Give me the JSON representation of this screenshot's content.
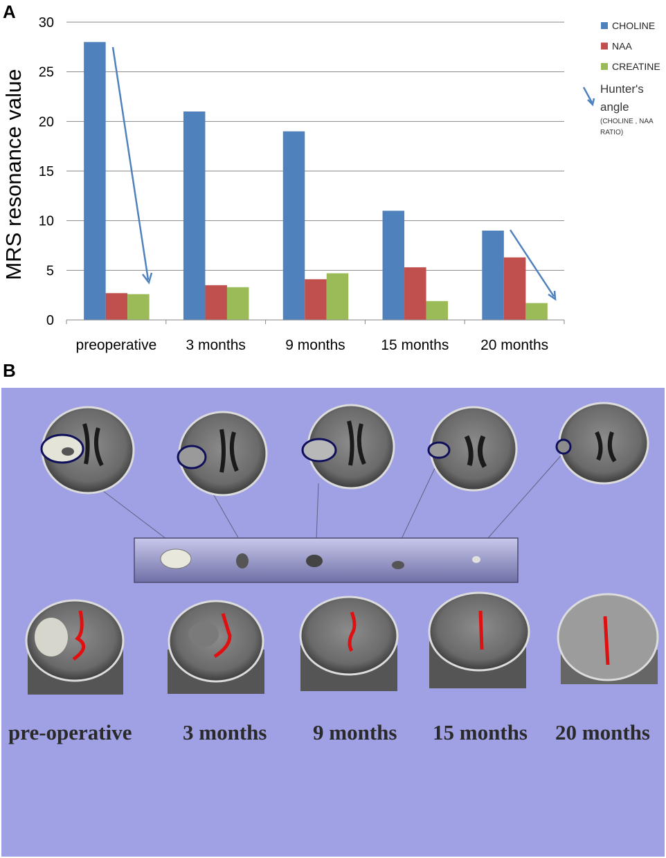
{
  "panel_a_label": "A",
  "panel_b_label": "B",
  "chart_data": {
    "type": "bar",
    "title": "",
    "xlabel": "",
    "ylabel": "MRS resonance value",
    "ylim": [
      0,
      30
    ],
    "yticks": [
      0,
      5,
      10,
      15,
      20,
      25,
      30
    ],
    "grid": true,
    "legend_position": "right",
    "categories": [
      "preoperative",
      "3 months",
      "9 months",
      "15 months",
      "20 months"
    ],
    "series": [
      {
        "name": "CHOLINE",
        "color": "#4f81bd",
        "values": [
          28,
          21,
          19,
          11,
          9
        ]
      },
      {
        "name": "NAA",
        "color": "#c0504d",
        "values": [
          2.7,
          3.5,
          4.1,
          5.3,
          6.3
        ]
      },
      {
        "name": "CREATINE",
        "color": "#9bbb59",
        "values": [
          2.6,
          3.3,
          4.7,
          1.9,
          1.7
        ]
      }
    ],
    "annotation": {
      "title_line1": "Hunter's",
      "title_line2": "angle",
      "note_line1": "(CHOLINE , NAA",
      "note_line2": "RATIO)",
      "color": "#4f81bd"
    }
  },
  "panel_b": {
    "background": "#a0a0e4",
    "captions": [
      "pre-operative",
      "3 months",
      "9 months",
      "15 months",
      "20 months"
    ]
  }
}
